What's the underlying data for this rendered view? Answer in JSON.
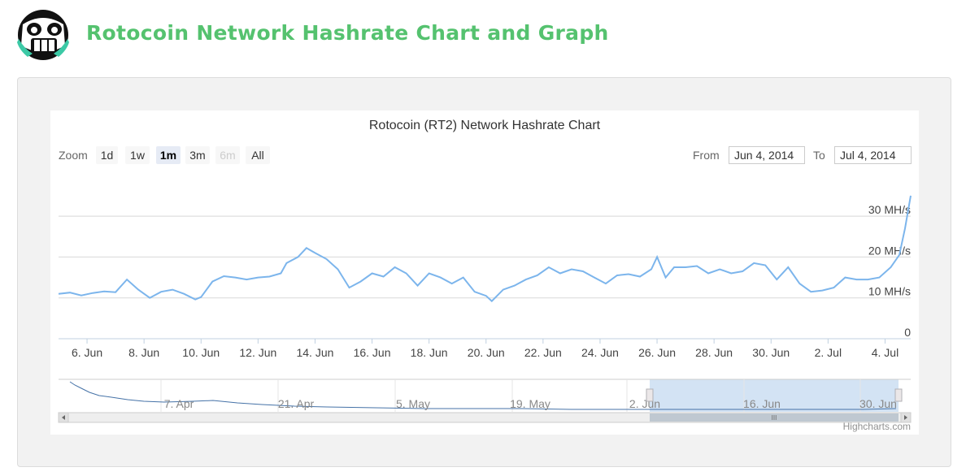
{
  "page": {
    "title": "Rotocoin Network Hashrate Chart and Graph",
    "accent_color": "#55c26f",
    "logo_icon": "grinning-robot-face-icon"
  },
  "controls": {
    "zoom_label": "Zoom",
    "zoom_buttons": [
      {
        "label": "1d",
        "state": "normal"
      },
      {
        "label": "1w",
        "state": "normal"
      },
      {
        "label": "1m",
        "state": "active"
      },
      {
        "label": "3m",
        "state": "normal"
      },
      {
        "label": "6m",
        "state": "disabled"
      },
      {
        "label": "All",
        "state": "normal"
      }
    ],
    "from_label": "From",
    "from_value": "Jun 4, 2014",
    "to_label": "To",
    "to_value": "Jul 4, 2014"
  },
  "credits": "Highcharts.com",
  "chart_data": {
    "type": "line",
    "title": "Rotocoin (RT2) Network Hashrate Chart",
    "series_color": "#7cb5ec",
    "grid": true,
    "y_tick_labels": [
      "0",
      "10 MH/s",
      "20 MH/s",
      "30 MH/s"
    ],
    "y_ticks": [
      0,
      10,
      20,
      30
    ],
    "ylim": [
      0,
      36
    ],
    "x_tick_labels": [
      "6. Jun",
      "8. Jun",
      "10. Jun",
      "12. Jun",
      "14. Jun",
      "16. Jun",
      "18. Jun",
      "20. Jun",
      "22. Jun",
      "24. Jun",
      "26. Jun",
      "28. Jun",
      "30. Jun",
      "2. Jul",
      "4. Jul"
    ],
    "x_tick_days": [
      6,
      8,
      10,
      12,
      14,
      16,
      18,
      20,
      22,
      24,
      26,
      28,
      30,
      32,
      34
    ],
    "xlim_days": [
      5.0,
      34.9
    ],
    "x_axis_note": "x values are day numbers starting at June (32 = 2. Jul)",
    "x": [
      5.0,
      5.4,
      5.8,
      6.2,
      6.6,
      7.0,
      7.4,
      7.8,
      8.2,
      8.6,
      9.0,
      9.4,
      9.8,
      10.0,
      10.4,
      10.8,
      11.2,
      11.6,
      12.0,
      12.4,
      12.8,
      13.0,
      13.4,
      13.7,
      14.0,
      14.4,
      14.8,
      15.2,
      15.6,
      16.0,
      16.4,
      16.8,
      17.2,
      17.6,
      18.0,
      18.4,
      18.8,
      19.2,
      19.6,
      20.0,
      20.2,
      20.6,
      21.0,
      21.4,
      21.8,
      22.2,
      22.6,
      23.0,
      23.4,
      23.8,
      24.2,
      24.6,
      25.0,
      25.4,
      25.8,
      26.0,
      26.3,
      26.6,
      27.0,
      27.4,
      27.8,
      28.2,
      28.6,
      29.0,
      29.4,
      29.8,
      30.2,
      30.6,
      31.0,
      31.4,
      31.8,
      32.2,
      32.6,
      33.0,
      33.4,
      33.8,
      34.2,
      34.5,
      34.7,
      34.9
    ],
    "y": [
      11.0,
      11.3,
      10.6,
      11.2,
      11.6,
      11.4,
      14.5,
      12.0,
      10.0,
      11.5,
      12.0,
      11.0,
      9.6,
      10.2,
      14.0,
      15.3,
      15.0,
      14.5,
      15.0,
      15.2,
      16.0,
      18.5,
      20.0,
      22.2,
      21.0,
      19.5,
      17.0,
      12.5,
      14.0,
      16.0,
      15.2,
      17.5,
      16.0,
      13.0,
      16.0,
      15.0,
      13.5,
      15.0,
      11.5,
      10.5,
      9.2,
      12.0,
      13.0,
      14.5,
      15.5,
      17.5,
      16.0,
      17.0,
      16.5,
      15.0,
      13.5,
      15.5,
      15.8,
      15.2,
      17.0,
      20.0,
      15.0,
      17.5,
      17.5,
      17.8,
      16.0,
      17.0,
      16.0,
      16.5,
      18.5,
      18.0,
      14.5,
      17.5,
      13.5,
      11.5,
      11.8,
      12.5,
      15.0,
      14.5,
      14.5,
      15.0,
      17.5,
      20.5,
      27.0,
      35.0
    ]
  },
  "navigator": {
    "date_labels": [
      "7. Apr",
      "21. Apr",
      "5. May",
      "19. May",
      "2. Jun",
      "16. Jun",
      "30. Jun"
    ],
    "thumb_label": "III"
  }
}
